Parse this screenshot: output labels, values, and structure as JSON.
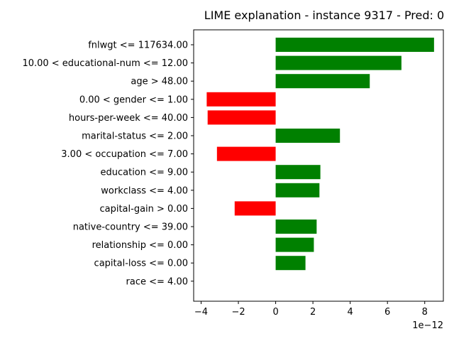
{
  "chart_data": {
    "type": "bar",
    "orientation": "horizontal",
    "title": "LIME explanation - instance 9317 - Pred: 0",
    "xlabel": "",
    "ylabel": "",
    "x_offset_label": "1e−12",
    "x_scale_exponent": -12,
    "xlim": [
      -4.4,
      9.0
    ],
    "x_ticks": [
      -4,
      -2,
      0,
      2,
      4,
      6,
      8
    ],
    "x_tick_labels": [
      "−4",
      "−2",
      "0",
      "2",
      "4",
      "6",
      "8"
    ],
    "grid": false,
    "categories": [
      "fnlwgt <= 117634.00",
      "10.00 < educational-num <= 12.00",
      "age > 48.00",
      "0.00 < gender <= 1.00",
      "hours-per-week <= 40.00",
      "marital-status <= 2.00",
      "3.00 < occupation <= 7.00",
      "education <= 9.00",
      "workclass <= 4.00",
      "capital-gain > 0.00",
      "native-country <= 39.00",
      "relationship <= 0.00",
      "capital-loss <= 0.00",
      "race <= 4.00"
    ],
    "values": [
      8.5,
      6.75,
      5.05,
      -3.7,
      -3.65,
      3.45,
      -3.15,
      2.4,
      2.35,
      -2.2,
      2.2,
      2.05,
      1.6,
      0.0
    ],
    "colors": {
      "positive": "#008000",
      "negative": "#ff0000"
    }
  }
}
